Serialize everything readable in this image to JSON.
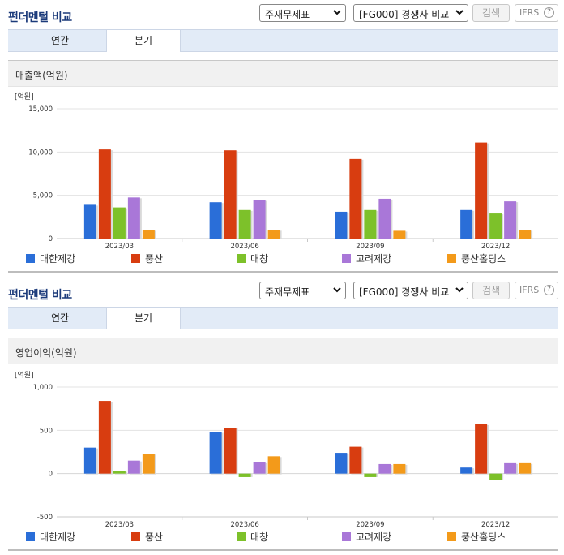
{
  "sections": [
    {
      "header": {
        "title": "펀더멘털 비교",
        "statement_select": "주재무제표",
        "group_select": "[FG000] 경쟁사 비교",
        "search_label": "검색",
        "ifrs_label": "IFRS",
        "help_label": "?"
      },
      "tabs": [
        {
          "label": "연간",
          "active": false
        },
        {
          "label": "분기",
          "active": true
        }
      ],
      "chart_title": "매출액(억원)",
      "chart_data": {
        "type": "bar",
        "unit_label": "[억원]",
        "categories": [
          "2023/03",
          "2023/06",
          "2023/09",
          "2023/12"
        ],
        "ylim": [
          0,
          15000
        ],
        "yticks": [
          0,
          5000,
          10000,
          15000
        ],
        "ytick_labels": [
          "0",
          "5,000",
          "10,000",
          "15,000"
        ],
        "series": [
          {
            "name": "대한제강",
            "color": "#2a6ed8",
            "values": [
              3900,
              4200,
              3100,
              3300
            ]
          },
          {
            "name": "풍산",
            "color": "#d83d10",
            "values": [
              10300,
              10200,
              9200,
              11100
            ]
          },
          {
            "name": "대창",
            "color": "#7dc12a",
            "values": [
              3600,
              3300,
              3300,
              2900
            ]
          },
          {
            "name": "고려제강",
            "color": "#a977d8",
            "values": [
              4750,
              4450,
              4600,
              4300
            ]
          },
          {
            "name": "풍산홀딩스",
            "color": "#f39a1a",
            "values": [
              1000,
              1000,
              900,
              1000
            ]
          }
        ]
      }
    },
    {
      "header": {
        "title": "펀더멘털 비교",
        "statement_select": "주재무제표",
        "group_select": "[FG000] 경쟁사 비교",
        "search_label": "검색",
        "ifrs_label": "IFRS",
        "help_label": "?"
      },
      "tabs": [
        {
          "label": "연간",
          "active": false
        },
        {
          "label": "분기",
          "active": true
        }
      ],
      "chart_title": "영업이익(억원)",
      "chart_data": {
        "type": "bar",
        "unit_label": "[억원]",
        "categories": [
          "2023/03",
          "2023/06",
          "2023/09",
          "2023/12"
        ],
        "ylim": [
          -500,
          1000
        ],
        "yticks": [
          -500,
          0,
          500,
          1000
        ],
        "ytick_labels": [
          "-500",
          "0",
          "500",
          "1,000"
        ],
        "series": [
          {
            "name": "대한제강",
            "color": "#2a6ed8",
            "values": [
              300,
              480,
              240,
              70
            ]
          },
          {
            "name": "풍산",
            "color": "#d83d10",
            "values": [
              840,
              530,
              310,
              570
            ]
          },
          {
            "name": "대창",
            "color": "#7dc12a",
            "values": [
              30,
              -40,
              -40,
              -70
            ]
          },
          {
            "name": "고려제강",
            "color": "#a977d8",
            "values": [
              150,
              130,
              110,
              120
            ]
          },
          {
            "name": "풍산홀딩스",
            "color": "#f39a1a",
            "values": [
              230,
              200,
              110,
              120
            ]
          }
        ]
      }
    }
  ],
  "icons": {
    "dropdown": "chevron-down-icon",
    "help": "question-circle-icon"
  }
}
